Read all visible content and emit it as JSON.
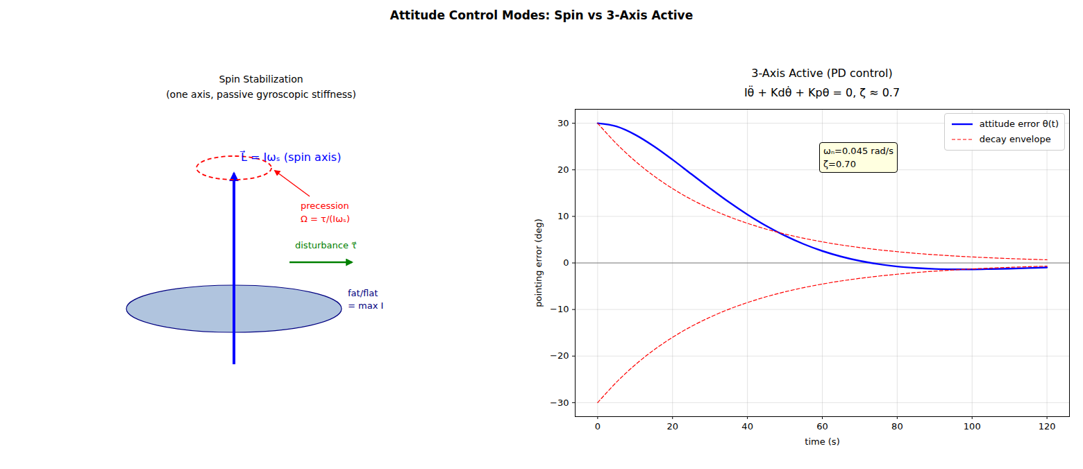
{
  "title": "Attitude Control Modes: Spin vs 3-Axis Active",
  "diagram": {
    "title": "Spin Stabilization",
    "subtitle": "(one axis, passive gyroscopic stiffness)",
    "spin_label": "L⃗ = Iωₛ (spin axis)",
    "precession_label": [
      "precession",
      "Ω = τ/(Iωₛ)"
    ],
    "disturbance_label": "disturbance τ⃗",
    "body_label": [
      "fat/flat",
      "= max I"
    ]
  },
  "chart_data": {
    "type": "line",
    "title": "3-Axis Active (PD control)",
    "subtitle": "Iθ̈ + Kdθ̇ + Kpθ = 0,  ζ ≈ 0.7",
    "xlabel": "time (s)",
    "ylabel": "pointing error (deg)",
    "x": [
      0,
      5,
      10,
      15,
      20,
      25,
      30,
      35,
      40,
      45,
      50,
      55,
      60,
      65,
      70,
      75,
      80,
      85,
      90,
      95,
      100,
      105,
      110,
      115,
      120
    ],
    "series": [
      {
        "name": "attitude error θ(t)",
        "color": "#0000ff",
        "line_style": "solid",
        "values": [
          30,
          29.32,
          27.55,
          25.07,
          22.18,
          19.1,
          16.04,
          13.1,
          10.4,
          7.97,
          5.86,
          4.06,
          2.57,
          1.38,
          0.44,
          -0.25,
          -0.77,
          -1.08,
          -1.28,
          -1.37,
          -1.38,
          -1.31,
          -1.22,
          -1.1,
          -0.96
        ]
      },
      {
        "name": "decay envelope",
        "color": "#ff0000",
        "line_style": "dashed",
        "values": [
          30,
          25.63,
          21.89,
          18.7,
          15.98,
          13.65,
          11.66,
          9.96,
          8.51,
          7.27,
          6.21,
          5.3,
          4.53,
          3.87,
          3.31,
          2.83,
          2.42,
          2.06,
          1.76,
          1.51,
          1.29,
          1.1,
          0.94,
          0.8,
          0.68
        ]
      },
      {
        "name": "decay envelope",
        "color": "#ff0000",
        "line_style": "dashed",
        "values": [
          -30,
          -25.63,
          -21.89,
          -18.7,
          -15.98,
          -13.65,
          -11.66,
          -9.96,
          -8.51,
          -7.27,
          -6.21,
          -5.3,
          -4.53,
          -3.87,
          -3.31,
          -2.83,
          -2.42,
          -2.06,
          -1.76,
          -1.51,
          -1.29,
          -1.1,
          -0.94,
          -0.8,
          -0.68
        ]
      }
    ],
    "hline": 0,
    "annotation": [
      "ωₙ=0.045 rad/s",
      "ζ=0.70"
    ],
    "xlim": [
      -6,
      126
    ],
    "ylim": [
      -33,
      33
    ],
    "xticks": [
      0,
      20,
      40,
      60,
      80,
      100,
      120
    ],
    "yticks": [
      -30,
      -20,
      -10,
      0,
      10,
      20,
      30
    ],
    "grid": true,
    "legend": "upper right"
  }
}
